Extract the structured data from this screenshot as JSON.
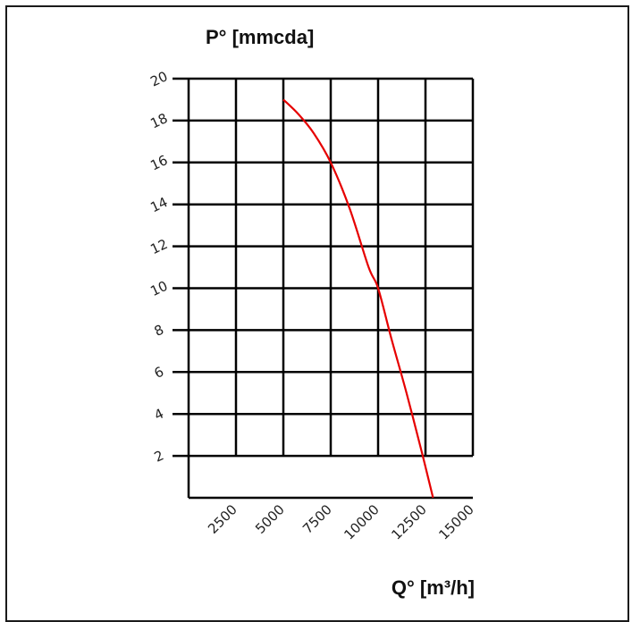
{
  "chart_data": {
    "type": "line",
    "ylabel": "P° [mmcda]",
    "xlabel": "Q° [m³/h]",
    "xlim": [
      0,
      15000
    ],
    "ylim": [
      0,
      20
    ],
    "x_ticks": [
      2500,
      5000,
      7500,
      10000,
      12500,
      15000
    ],
    "y_ticks": [
      2,
      4,
      6,
      8,
      10,
      12,
      14,
      16,
      18,
      20
    ],
    "grid": true,
    "series": [
      {
        "color": "#e60000",
        "x": [
          5000,
          5800,
          6600,
          7500,
          8500,
          9500,
          10000,
          10700,
          11500,
          12300,
          12900
        ],
        "y": [
          19.0,
          18.3,
          17.4,
          16.0,
          13.8,
          11.0,
          10.0,
          7.6,
          5.0,
          2.2,
          0
        ]
      }
    ]
  }
}
